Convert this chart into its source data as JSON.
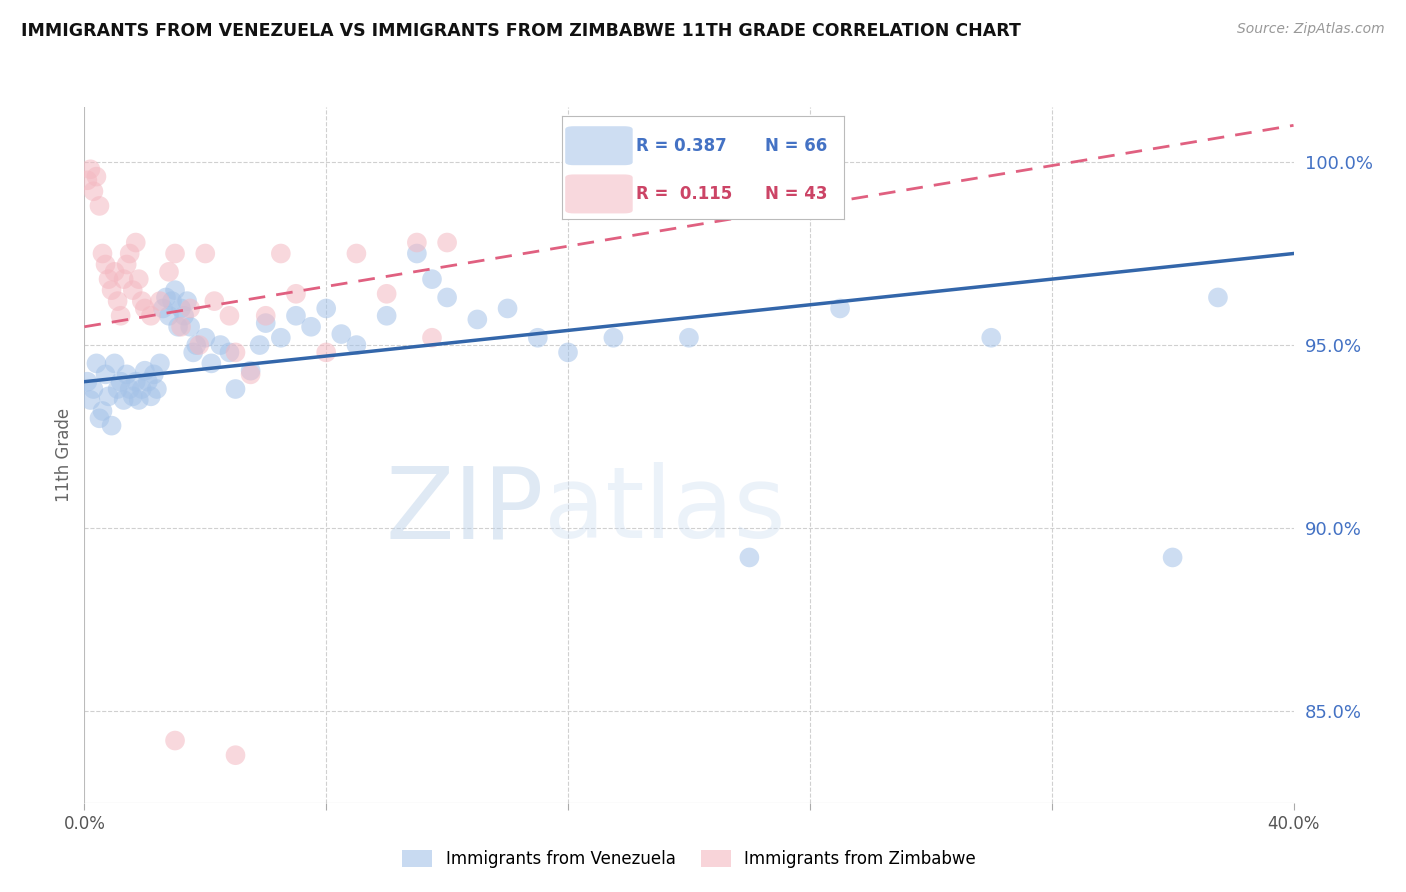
{
  "title": "IMMIGRANTS FROM VENEZUELA VS IMMIGRANTS FROM ZIMBABWE 11TH GRADE CORRELATION CHART",
  "source": "Source: ZipAtlas.com",
  "ylabel": "11th Grade",
  "ylabel_right_labels": [
    "100.0%",
    "95.0%",
    "90.0%",
    "85.0%"
  ],
  "ylabel_right_values": [
    1.0,
    0.95,
    0.9,
    0.85
  ],
  "xlim": [
    0.0,
    0.4
  ],
  "ylim": [
    0.825,
    1.015
  ],
  "legend_blue_r": "R = 0.387",
  "legend_blue_n": "N = 66",
  "legend_pink_r": "R =  0.115",
  "legend_pink_n": "N = 43",
  "blue_color": "#a4c2e8",
  "pink_color": "#f4b8c1",
  "blue_line_color": "#3366aa",
  "pink_line_color": "#e06080",
  "blue_line_x": [
    0.0,
    0.4
  ],
  "blue_line_y": [
    0.94,
    0.975
  ],
  "pink_line_x": [
    0.0,
    0.4
  ],
  "pink_line_y": [
    0.955,
    1.01
  ],
  "blue_scatter": [
    [
      0.001,
      0.94
    ],
    [
      0.002,
      0.935
    ],
    [
      0.003,
      0.938
    ],
    [
      0.004,
      0.945
    ],
    [
      0.005,
      0.93
    ],
    [
      0.006,
      0.932
    ],
    [
      0.007,
      0.942
    ],
    [
      0.008,
      0.936
    ],
    [
      0.009,
      0.928
    ],
    [
      0.01,
      0.945
    ],
    [
      0.011,
      0.938
    ],
    [
      0.012,
      0.94
    ],
    [
      0.013,
      0.935
    ],
    [
      0.014,
      0.942
    ],
    [
      0.015,
      0.938
    ],
    [
      0.016,
      0.936
    ],
    [
      0.017,
      0.94
    ],
    [
      0.018,
      0.935
    ],
    [
      0.019,
      0.938
    ],
    [
      0.02,
      0.943
    ],
    [
      0.021,
      0.94
    ],
    [
      0.022,
      0.936
    ],
    [
      0.023,
      0.942
    ],
    [
      0.024,
      0.938
    ],
    [
      0.025,
      0.945
    ],
    [
      0.026,
      0.96
    ],
    [
      0.027,
      0.963
    ],
    [
      0.028,
      0.958
    ],
    [
      0.029,
      0.962
    ],
    [
      0.03,
      0.965
    ],
    [
      0.031,
      0.955
    ],
    [
      0.032,
      0.96
    ],
    [
      0.033,
      0.958
    ],
    [
      0.034,
      0.962
    ],
    [
      0.035,
      0.955
    ],
    [
      0.036,
      0.948
    ],
    [
      0.037,
      0.95
    ],
    [
      0.04,
      0.952
    ],
    [
      0.042,
      0.945
    ],
    [
      0.045,
      0.95
    ],
    [
      0.048,
      0.948
    ],
    [
      0.05,
      0.938
    ],
    [
      0.055,
      0.943
    ],
    [
      0.058,
      0.95
    ],
    [
      0.06,
      0.956
    ],
    [
      0.065,
      0.952
    ],
    [
      0.07,
      0.958
    ],
    [
      0.075,
      0.955
    ],
    [
      0.08,
      0.96
    ],
    [
      0.085,
      0.953
    ],
    [
      0.09,
      0.95
    ],
    [
      0.1,
      0.958
    ],
    [
      0.11,
      0.975
    ],
    [
      0.115,
      0.968
    ],
    [
      0.12,
      0.963
    ],
    [
      0.13,
      0.957
    ],
    [
      0.14,
      0.96
    ],
    [
      0.15,
      0.952
    ],
    [
      0.16,
      0.948
    ],
    [
      0.175,
      0.952
    ],
    [
      0.2,
      0.952
    ],
    [
      0.22,
      0.892
    ],
    [
      0.25,
      0.96
    ],
    [
      0.3,
      0.952
    ],
    [
      0.36,
      0.892
    ],
    [
      0.375,
      0.963
    ]
  ],
  "pink_scatter": [
    [
      0.001,
      0.995
    ],
    [
      0.002,
      0.998
    ],
    [
      0.003,
      0.992
    ],
    [
      0.004,
      0.996
    ],
    [
      0.005,
      0.988
    ],
    [
      0.006,
      0.975
    ],
    [
      0.007,
      0.972
    ],
    [
      0.008,
      0.968
    ],
    [
      0.009,
      0.965
    ],
    [
      0.01,
      0.97
    ],
    [
      0.011,
      0.962
    ],
    [
      0.012,
      0.958
    ],
    [
      0.013,
      0.968
    ],
    [
      0.014,
      0.972
    ],
    [
      0.015,
      0.975
    ],
    [
      0.016,
      0.965
    ],
    [
      0.017,
      0.978
    ],
    [
      0.018,
      0.968
    ],
    [
      0.019,
      0.962
    ],
    [
      0.02,
      0.96
    ],
    [
      0.022,
      0.958
    ],
    [
      0.025,
      0.962
    ],
    [
      0.028,
      0.97
    ],
    [
      0.03,
      0.975
    ],
    [
      0.032,
      0.955
    ],
    [
      0.035,
      0.96
    ],
    [
      0.038,
      0.95
    ],
    [
      0.04,
      0.975
    ],
    [
      0.043,
      0.962
    ],
    [
      0.048,
      0.958
    ],
    [
      0.05,
      0.948
    ],
    [
      0.055,
      0.942
    ],
    [
      0.06,
      0.958
    ],
    [
      0.065,
      0.975
    ],
    [
      0.07,
      0.964
    ],
    [
      0.08,
      0.948
    ],
    [
      0.09,
      0.975
    ],
    [
      0.1,
      0.964
    ],
    [
      0.11,
      0.978
    ],
    [
      0.115,
      0.952
    ],
    [
      0.12,
      0.978
    ],
    [
      0.03,
      0.842
    ],
    [
      0.05,
      0.838
    ]
  ],
  "watermark_zip": "ZIP",
  "watermark_atlas": "atlas",
  "background_color": "#ffffff",
  "grid_color": "#d0d0d0"
}
